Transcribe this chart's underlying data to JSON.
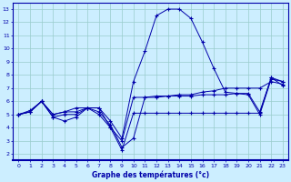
{
  "xlabel": "Graphe des températures (°c)",
  "xlim": [
    -0.5,
    23.5
  ],
  "ylim": [
    1.5,
    13.5
  ],
  "yticks": [
    2,
    3,
    4,
    5,
    6,
    7,
    8,
    9,
    10,
    11,
    12,
    13
  ],
  "xticks": [
    0,
    1,
    2,
    3,
    4,
    5,
    6,
    7,
    8,
    9,
    10,
    11,
    12,
    13,
    14,
    15,
    16,
    17,
    18,
    19,
    20,
    21,
    22,
    23
  ],
  "background_color": "#cceeff",
  "line_color": "#0000aa",
  "grid_color": "#99cccc",
  "series": [
    {
      "x": [
        0,
        1,
        2,
        3,
        4,
        5,
        6,
        7,
        8,
        9,
        10,
        11,
        12,
        13,
        14,
        15,
        16,
        17,
        18,
        19,
        20,
        21,
        22,
        23
      ],
      "y": [
        5.0,
        5.2,
        6.0,
        5.0,
        5.2,
        5.5,
        5.5,
        5.5,
        4.5,
        3.2,
        7.5,
        9.8,
        12.5,
        13.0,
        13.0,
        12.3,
        10.5,
        8.5,
        6.7,
        6.6,
        6.5,
        5.0,
        7.7,
        7.5
      ]
    },
    {
      "x": [
        0,
        1,
        2,
        3,
        4,
        5,
        6,
        7,
        8,
        9,
        10,
        11,
        12,
        13,
        14,
        15,
        16,
        17,
        18,
        19,
        20,
        21,
        22,
        23
      ],
      "y": [
        5.0,
        5.2,
        6.0,
        4.8,
        5.0,
        5.0,
        5.5,
        5.2,
        4.2,
        2.5,
        3.2,
        6.3,
        6.4,
        6.4,
        6.5,
        6.5,
        6.7,
        6.8,
        7.0,
        7.0,
        7.0,
        7.0,
        7.5,
        7.3
      ]
    },
    {
      "x": [
        0,
        1,
        2,
        3,
        4,
        5,
        6,
        7,
        8,
        9,
        10,
        11,
        12,
        13,
        14,
        15,
        16,
        17,
        18,
        19,
        20,
        21,
        22,
        23
      ],
      "y": [
        5.0,
        5.2,
        6.0,
        5.0,
        5.2,
        5.2,
        5.5,
        5.5,
        4.0,
        3.0,
        6.3,
        6.3,
        6.3,
        6.4,
        6.4,
        6.4,
        6.5,
        6.5,
        6.5,
        6.6,
        6.6,
        5.2,
        7.8,
        7.5
      ]
    },
    {
      "x": [
        0,
        1,
        2,
        3,
        4,
        5,
        6,
        7,
        8,
        9,
        10,
        11,
        12,
        13,
        14,
        15,
        16,
        17,
        18,
        19,
        20,
        21,
        22,
        23
      ],
      "y": [
        5.0,
        5.3,
        6.0,
        4.8,
        4.5,
        4.8,
        5.5,
        5.0,
        4.0,
        2.3,
        5.1,
        5.1,
        5.1,
        5.1,
        5.1,
        5.1,
        5.1,
        5.1,
        5.1,
        5.1,
        5.1,
        5.1,
        7.8,
        7.2
      ]
    }
  ]
}
